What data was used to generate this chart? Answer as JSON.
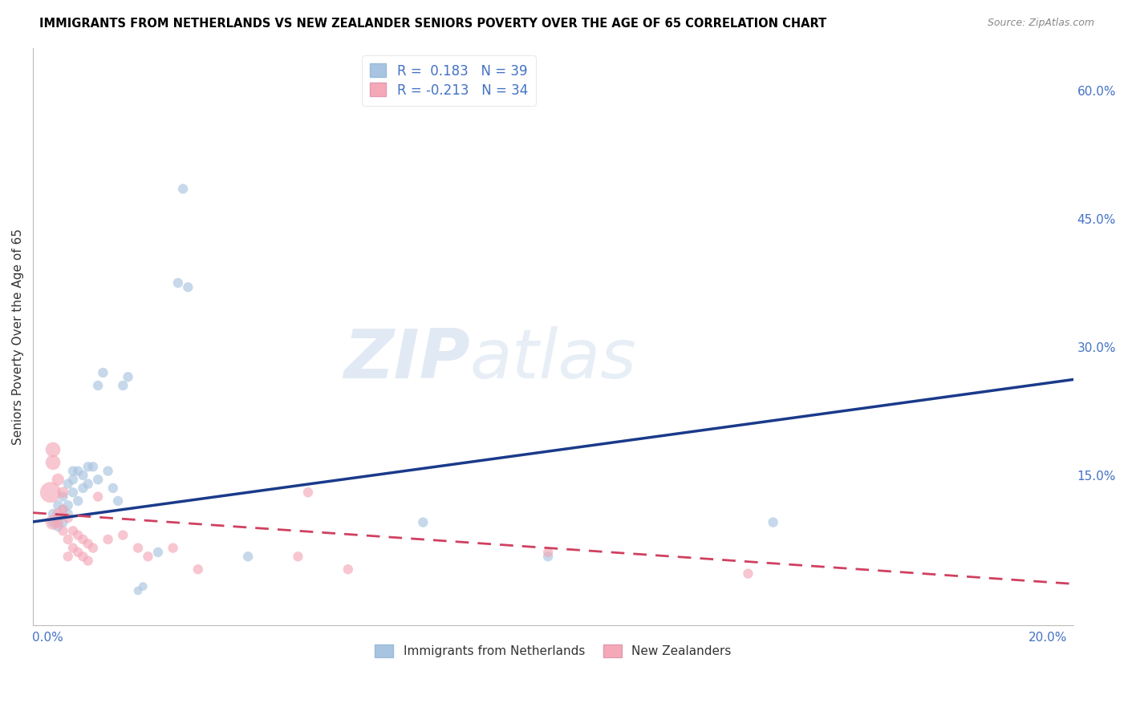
{
  "title": "IMMIGRANTS FROM NETHERLANDS VS NEW ZEALANDER SENIORS POVERTY OVER THE AGE OF 65 CORRELATION CHART",
  "source": "Source: ZipAtlas.com",
  "label_color": "#4472C4",
  "ylabel": "Seniors Poverty Over the Age of 65",
  "blue_R": 0.183,
  "blue_N": 39,
  "pink_R": -0.213,
  "pink_N": 34,
  "blue_fill": "#A8C4E0",
  "pink_fill": "#F4A8B8",
  "blue_line": "#1A3A8A",
  "pink_line": "#D04060",
  "watermark_zip": "ZIP",
  "watermark_atlas": "atlas",
  "legend_label_blue": "Immigrants from Netherlands",
  "legend_label_pink": "New Zealanders",
  "xlim": [
    -0.003,
    0.205
  ],
  "ylim": [
    -0.025,
    0.65
  ],
  "figsize": [
    14.06,
    8.92
  ],
  "dpi": 100,
  "right_yticks": [
    0.0,
    0.15,
    0.3,
    0.45,
    0.6
  ],
  "right_ylabels": [
    "",
    "15.0%",
    "30.0%",
    "45.0%",
    "60.0%"
  ],
  "xtick_pos": [
    0.0,
    0.05,
    0.1,
    0.15,
    0.2
  ],
  "xtick_labels": [
    "0.0%",
    "",
    "",
    "",
    "20.0%"
  ],
  "blue_points": [
    [
      0.001,
      0.095
    ],
    [
      0.001,
      0.105
    ],
    [
      0.002,
      0.1
    ],
    [
      0.002,
      0.115
    ],
    [
      0.002,
      0.09
    ],
    [
      0.003,
      0.11
    ],
    [
      0.003,
      0.125
    ],
    [
      0.003,
      0.095
    ],
    [
      0.004,
      0.105
    ],
    [
      0.004,
      0.14
    ],
    [
      0.004,
      0.115
    ],
    [
      0.005,
      0.155
    ],
    [
      0.005,
      0.13
    ],
    [
      0.005,
      0.145
    ],
    [
      0.006,
      0.12
    ],
    [
      0.006,
      0.155
    ],
    [
      0.007,
      0.15
    ],
    [
      0.007,
      0.135
    ],
    [
      0.008,
      0.16
    ],
    [
      0.008,
      0.14
    ],
    [
      0.009,
      0.16
    ],
    [
      0.01,
      0.255
    ],
    [
      0.01,
      0.145
    ],
    [
      0.011,
      0.27
    ],
    [
      0.012,
      0.155
    ],
    [
      0.013,
      0.135
    ],
    [
      0.014,
      0.12
    ],
    [
      0.015,
      0.255
    ],
    [
      0.016,
      0.265
    ],
    [
      0.018,
      0.015
    ],
    [
      0.019,
      0.02
    ],
    [
      0.022,
      0.06
    ],
    [
      0.026,
      0.375
    ],
    [
      0.027,
      0.485
    ],
    [
      0.028,
      0.37
    ],
    [
      0.04,
      0.055
    ],
    [
      0.075,
      0.095
    ],
    [
      0.1,
      0.055
    ],
    [
      0.145,
      0.095
    ]
  ],
  "blue_sizes": [
    80,
    80,
    80,
    80,
    80,
    80,
    80,
    80,
    80,
    80,
    80,
    80,
    80,
    80,
    80,
    80,
    80,
    80,
    80,
    80,
    80,
    80,
    80,
    80,
    80,
    80,
    80,
    80,
    80,
    60,
    60,
    80,
    80,
    80,
    80,
    80,
    80,
    80,
    80
  ],
  "pink_points": [
    [
      0.0005,
      0.13
    ],
    [
      0.001,
      0.095
    ],
    [
      0.001,
      0.18
    ],
    [
      0.001,
      0.165
    ],
    [
      0.002,
      0.145
    ],
    [
      0.002,
      0.105
    ],
    [
      0.002,
      0.095
    ],
    [
      0.003,
      0.13
    ],
    [
      0.003,
      0.11
    ],
    [
      0.003,
      0.085
    ],
    [
      0.004,
      0.1
    ],
    [
      0.004,
      0.075
    ],
    [
      0.004,
      0.055
    ],
    [
      0.005,
      0.085
    ],
    [
      0.005,
      0.065
    ],
    [
      0.006,
      0.08
    ],
    [
      0.006,
      0.06
    ],
    [
      0.007,
      0.075
    ],
    [
      0.007,
      0.055
    ],
    [
      0.008,
      0.07
    ],
    [
      0.008,
      0.05
    ],
    [
      0.009,
      0.065
    ],
    [
      0.01,
      0.125
    ],
    [
      0.012,
      0.075
    ],
    [
      0.015,
      0.08
    ],
    [
      0.018,
      0.065
    ],
    [
      0.02,
      0.055
    ],
    [
      0.025,
      0.065
    ],
    [
      0.03,
      0.04
    ],
    [
      0.05,
      0.055
    ],
    [
      0.052,
      0.13
    ],
    [
      0.06,
      0.04
    ],
    [
      0.1,
      0.06
    ],
    [
      0.14,
      0.035
    ]
  ],
  "pink_sizes": [
    350,
    180,
    180,
    180,
    120,
    100,
    100,
    100,
    80,
    80,
    80,
    80,
    80,
    80,
    80,
    80,
    80,
    80,
    80,
    80,
    80,
    80,
    80,
    80,
    80,
    80,
    80,
    80,
    80,
    80,
    80,
    80,
    80,
    80
  ]
}
